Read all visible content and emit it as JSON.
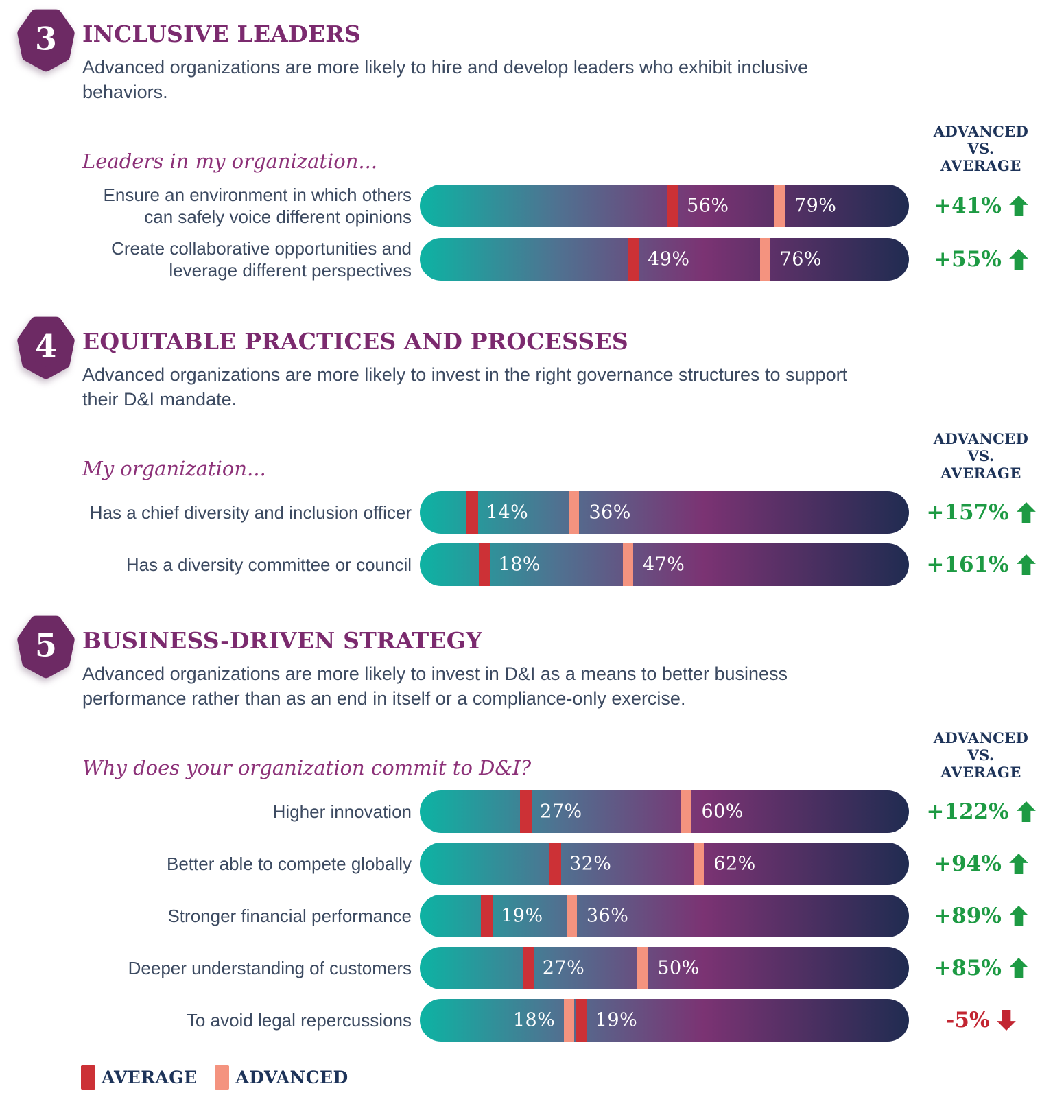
{
  "comparison_header": {
    "line1": "ADVANCED",
    "line2": "VS.",
    "line3": "AVERAGE"
  },
  "legend": {
    "items": [
      {
        "label": "AVERAGE",
        "color": "#cc3136"
      },
      {
        "label": "ADVANCED",
        "color": "#f4937f"
      }
    ]
  },
  "colors": {
    "badge": "#6d2a64",
    "heading": "#7b2a6e",
    "body_text": "#3c4a61",
    "prompt_text": "#8c3178",
    "header_navy": "#1d3359",
    "average_marker": "#cc3136",
    "advanced_marker": "#f4937f",
    "positive": "#1d9a43",
    "negative": "#c22531",
    "bar_gradient": [
      "#0db3a3",
      "#4f7291",
      "#7b3373",
      "#202c51"
    ]
  },
  "sections": [
    {
      "number": "3",
      "title": "INCLUSIVE LEADERS",
      "description": "Advanced organizations are more likely to hire and develop leaders who exhibit inclusive behaviors.",
      "prompt": "Leaders in my organization...",
      "rows": [
        {
          "label": "Ensure an environment in which others can safely voice different opinions",
          "delta": "+41%",
          "direction": "up",
          "markers": [
            {
              "series": "average",
              "value": "56%",
              "pos": 50.5,
              "label_side": "right"
            },
            {
              "series": "advanced",
              "value": "79%",
              "pos": 72.5,
              "label_side": "right"
            }
          ]
        },
        {
          "label": "Create collaborative opportunities and leverage different perspectives",
          "delta": "+55%",
          "direction": "up",
          "markers": [
            {
              "series": "average",
              "value": "49%",
              "pos": 42.5,
              "label_side": "right"
            },
            {
              "series": "advanced",
              "value": "76%",
              "pos": 69.5,
              "label_side": "right"
            }
          ]
        }
      ]
    },
    {
      "number": "4",
      "title": "EQUITABLE PRACTICES AND PROCESSES",
      "description": "Advanced organizations are more likely to invest in the right governance structures to support their D&I mandate.",
      "prompt": "My organization...",
      "rows": [
        {
          "label": "Has a chief diversity and inclusion officer",
          "delta": "+157%",
          "direction": "up",
          "markers": [
            {
              "series": "average",
              "value": "14%",
              "pos": 9.5,
              "label_side": "right"
            },
            {
              "series": "advanced",
              "value": "36%",
              "pos": 30.5,
              "label_side": "right"
            }
          ]
        },
        {
          "label": "Has a diversity committee or council",
          "delta": "+161%",
          "direction": "up",
          "markers": [
            {
              "series": "average",
              "value": "18%",
              "pos": 12,
              "label_side": "right"
            },
            {
              "series": "advanced",
              "value": "47%",
              "pos": 41.5,
              "label_side": "right"
            }
          ]
        }
      ]
    },
    {
      "number": "5",
      "title": "BUSINESS-DRIVEN STRATEGY",
      "description": "Advanced organizations are more likely to invest in D&I as a means to better business performance rather than as an end in itself or a compliance-only exercise.",
      "prompt": "Why does your organization commit to D&I?",
      "rows": [
        {
          "label": "Higher innovation",
          "delta": "+122%",
          "direction": "up",
          "markers": [
            {
              "series": "average",
              "value": "27%",
              "pos": 20.5,
              "label_side": "right"
            },
            {
              "series": "advanced",
              "value": "60%",
              "pos": 53.5,
              "label_side": "right"
            }
          ]
        },
        {
          "label": "Better able to compete globally",
          "delta": "+94%",
          "direction": "up",
          "markers": [
            {
              "series": "average",
              "value": "32%",
              "pos": 26.5,
              "label_side": "right"
            },
            {
              "series": "advanced",
              "value": "62%",
              "pos": 56,
              "label_side": "right"
            }
          ]
        },
        {
          "label": "Stronger financial performance",
          "delta": "+89%",
          "direction": "up",
          "markers": [
            {
              "series": "average",
              "value": "19%",
              "pos": 12.5,
              "label_side": "right"
            },
            {
              "series": "advanced",
              "value": "36%",
              "pos": 30,
              "label_side": "right"
            }
          ]
        },
        {
          "label": "Deeper understanding of customers",
          "delta": "+85%",
          "direction": "up",
          "markers": [
            {
              "series": "average",
              "value": "27%",
              "pos": 21,
              "label_side": "right"
            },
            {
              "series": "advanced",
              "value": "50%",
              "pos": 44.5,
              "label_side": "right"
            }
          ]
        },
        {
          "label": "To avoid legal repercussions",
          "delta": "-5%",
          "direction": "down",
          "markers": [
            {
              "series": "advanced",
              "value": "18%",
              "pos": 29.5,
              "label_side": "left"
            },
            {
              "series": "average",
              "value": "19%",
              "pos": 31.8,
              "label_side": "right"
            }
          ]
        }
      ]
    }
  ],
  "chart_data": [
    {
      "type": "bar",
      "title": "INCLUSIVE LEADERS",
      "subtitle": "Leaders in my organization...",
      "unit": "%",
      "categories": [
        "Ensure an environment in which others can safely voice different opinions",
        "Create collaborative opportunities and leverage different perspectives"
      ],
      "series": [
        {
          "name": "Average",
          "values": [
            56,
            49
          ]
        },
        {
          "name": "Advanced",
          "values": [
            79,
            76
          ]
        }
      ],
      "deltas_advanced_vs_average": [
        "+41%",
        "+55%"
      ],
      "legend_position": "bottom"
    },
    {
      "type": "bar",
      "title": "EQUITABLE PRACTICES AND PROCESSES",
      "subtitle": "My organization...",
      "unit": "%",
      "categories": [
        "Has a chief diversity and inclusion officer",
        "Has a diversity committee or council"
      ],
      "series": [
        {
          "name": "Average",
          "values": [
            14,
            18
          ]
        },
        {
          "name": "Advanced",
          "values": [
            36,
            47
          ]
        }
      ],
      "deltas_advanced_vs_average": [
        "+157%",
        "+161%"
      ],
      "legend_position": "bottom"
    },
    {
      "type": "bar",
      "title": "BUSINESS-DRIVEN STRATEGY",
      "subtitle": "Why does your organization commit to D&I?",
      "unit": "%",
      "categories": [
        "Higher innovation",
        "Better able to compete globally",
        "Stronger financial performance",
        "Deeper understanding of customers",
        "To avoid legal repercussions"
      ],
      "series": [
        {
          "name": "Average",
          "values": [
            27,
            32,
            19,
            27,
            19
          ]
        },
        {
          "name": "Advanced",
          "values": [
            60,
            62,
            36,
            50,
            18
          ]
        }
      ],
      "deltas_advanced_vs_average": [
        "+122%",
        "+94%",
        "+89%",
        "+85%",
        "-5%"
      ],
      "legend_position": "bottom"
    }
  ]
}
